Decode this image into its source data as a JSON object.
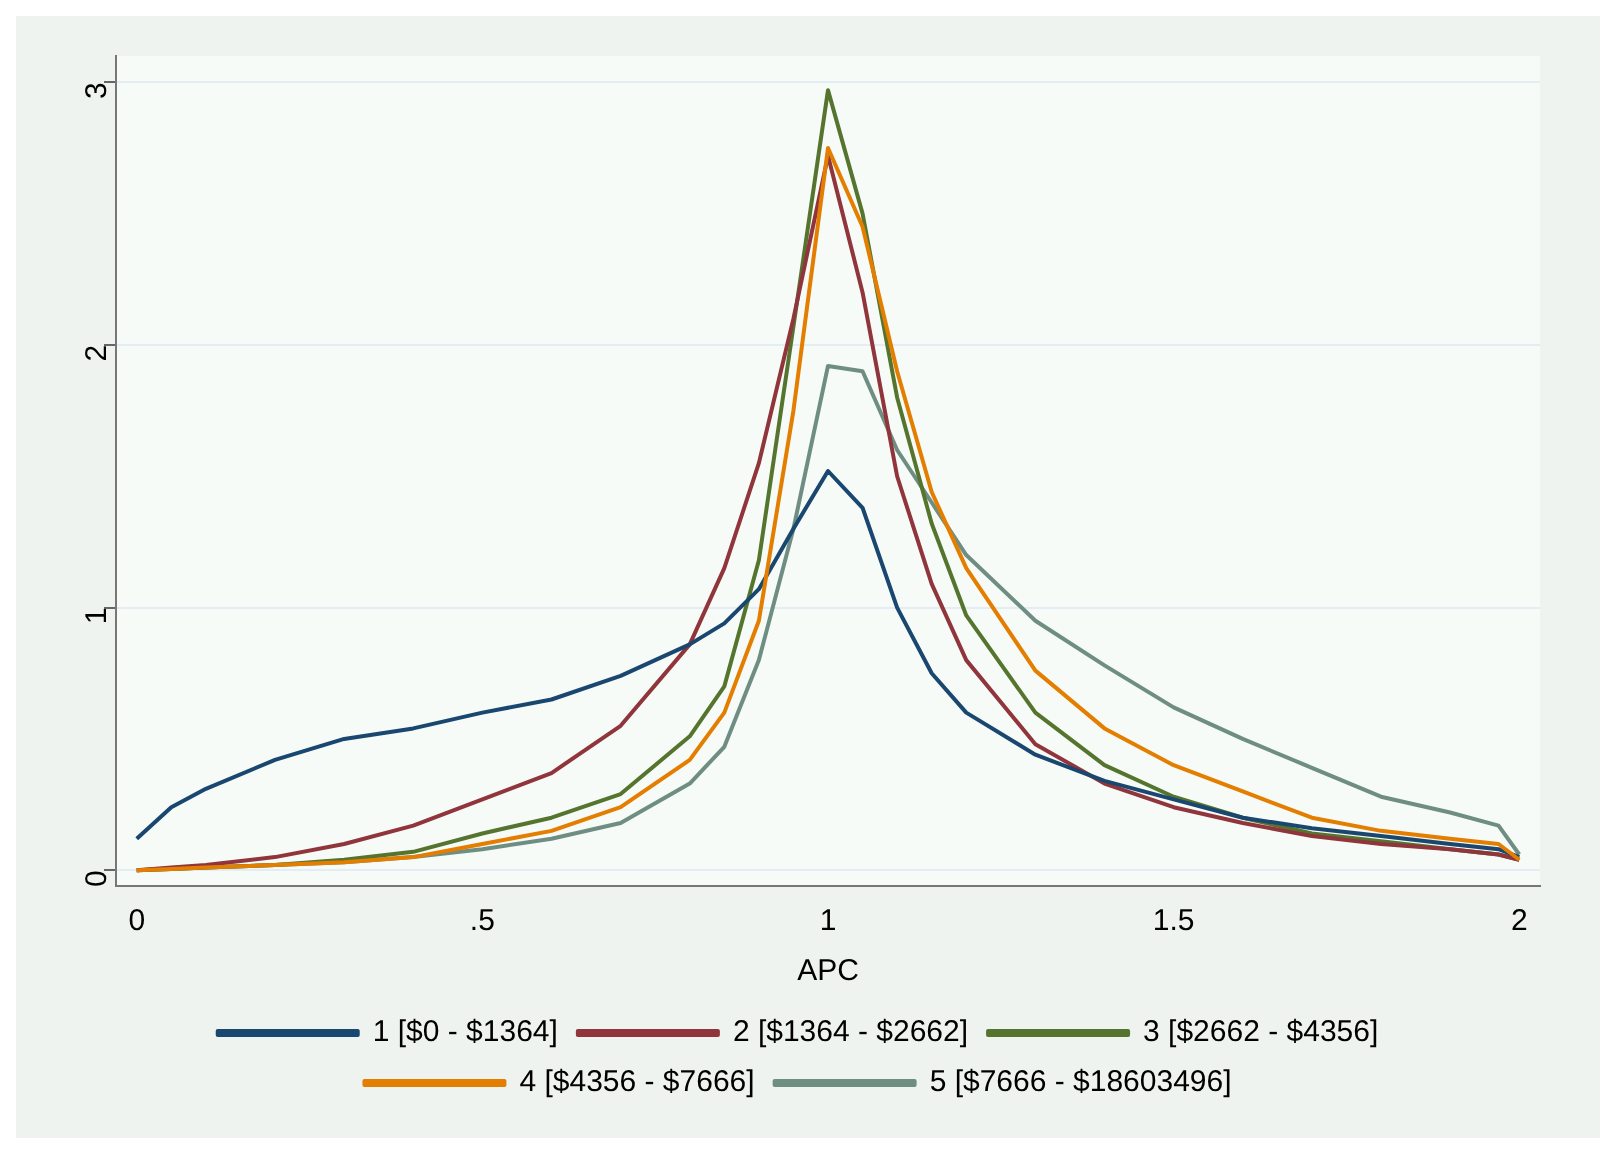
{
  "chart_data": {
    "type": "line",
    "xlabel": "APC",
    "x": [
      0,
      0.05,
      0.1,
      0.2,
      0.3,
      0.4,
      0.5,
      0.6,
      0.7,
      0.8,
      0.85,
      0.9,
      0.95,
      1.0,
      1.05,
      1.1,
      1.15,
      1.2,
      1.3,
      1.4,
      1.5,
      1.6,
      1.7,
      1.8,
      1.9,
      1.97,
      2.0
    ],
    "series": [
      {
        "name": "1 [$0 - $1364]",
        "color": "#1a476f",
        "values": [
          0.12,
          0.24,
          0.31,
          0.42,
          0.5,
          0.54,
          0.6,
          0.65,
          0.74,
          0.86,
          0.94,
          1.07,
          1.3,
          1.52,
          1.38,
          1.0,
          0.75,
          0.6,
          0.44,
          0.34,
          0.27,
          0.2,
          0.16,
          0.13,
          0.1,
          0.08,
          0.05
        ]
      },
      {
        "name": "2 [$1364 - $2662]",
        "color": "#90353b",
        "values": [
          0,
          0.01,
          0.02,
          0.05,
          0.1,
          0.17,
          0.27,
          0.37,
          0.55,
          0.86,
          1.15,
          1.55,
          2.1,
          2.72,
          2.2,
          1.5,
          1.09,
          0.8,
          0.48,
          0.33,
          0.24,
          0.18,
          0.13,
          0.1,
          0.08,
          0.06,
          0.04
        ]
      },
      {
        "name": "3 [$2662 - $4356]",
        "color": "#55752f",
        "values": [
          0,
          0.005,
          0.01,
          0.02,
          0.04,
          0.07,
          0.14,
          0.2,
          0.29,
          0.51,
          0.7,
          1.18,
          2.07,
          2.97,
          2.5,
          1.8,
          1.32,
          0.97,
          0.6,
          0.4,
          0.28,
          0.2,
          0.14,
          0.11,
          0.08,
          0.06,
          0.04
        ]
      },
      {
        "name": "4 [$4356 - $7666]",
        "color": "#e37e00",
        "values": [
          0,
          0.005,
          0.01,
          0.02,
          0.03,
          0.05,
          0.1,
          0.15,
          0.24,
          0.42,
          0.6,
          0.95,
          1.75,
          2.75,
          2.45,
          1.9,
          1.44,
          1.15,
          0.76,
          0.54,
          0.4,
          0.3,
          0.2,
          0.15,
          0.12,
          0.1,
          0.04
        ]
      },
      {
        "name": "5 [$7666 - $18603496]",
        "color": "#6e8e84",
        "values": [
          0,
          0.005,
          0.01,
          0.02,
          0.03,
          0.05,
          0.08,
          0.12,
          0.18,
          0.33,
          0.47,
          0.8,
          1.3,
          1.92,
          1.9,
          1.6,
          1.4,
          1.2,
          0.95,
          0.78,
          0.62,
          0.5,
          0.39,
          0.28,
          0.22,
          0.17,
          0.06
        ]
      }
    ],
    "xlim": [
      -0.03,
      2.03
    ],
    "xticks": [
      0,
      {
        "value": 0.5,
        "label": ".5"
      },
      1,
      1.5,
      2
    ],
    "ylim": [
      -0.06,
      3.1
    ],
    "yticks": [
      0,
      1,
      2,
      3
    ],
    "grid": "y",
    "legend": "bottom",
    "marker": "none",
    "line_style": "solid"
  }
}
